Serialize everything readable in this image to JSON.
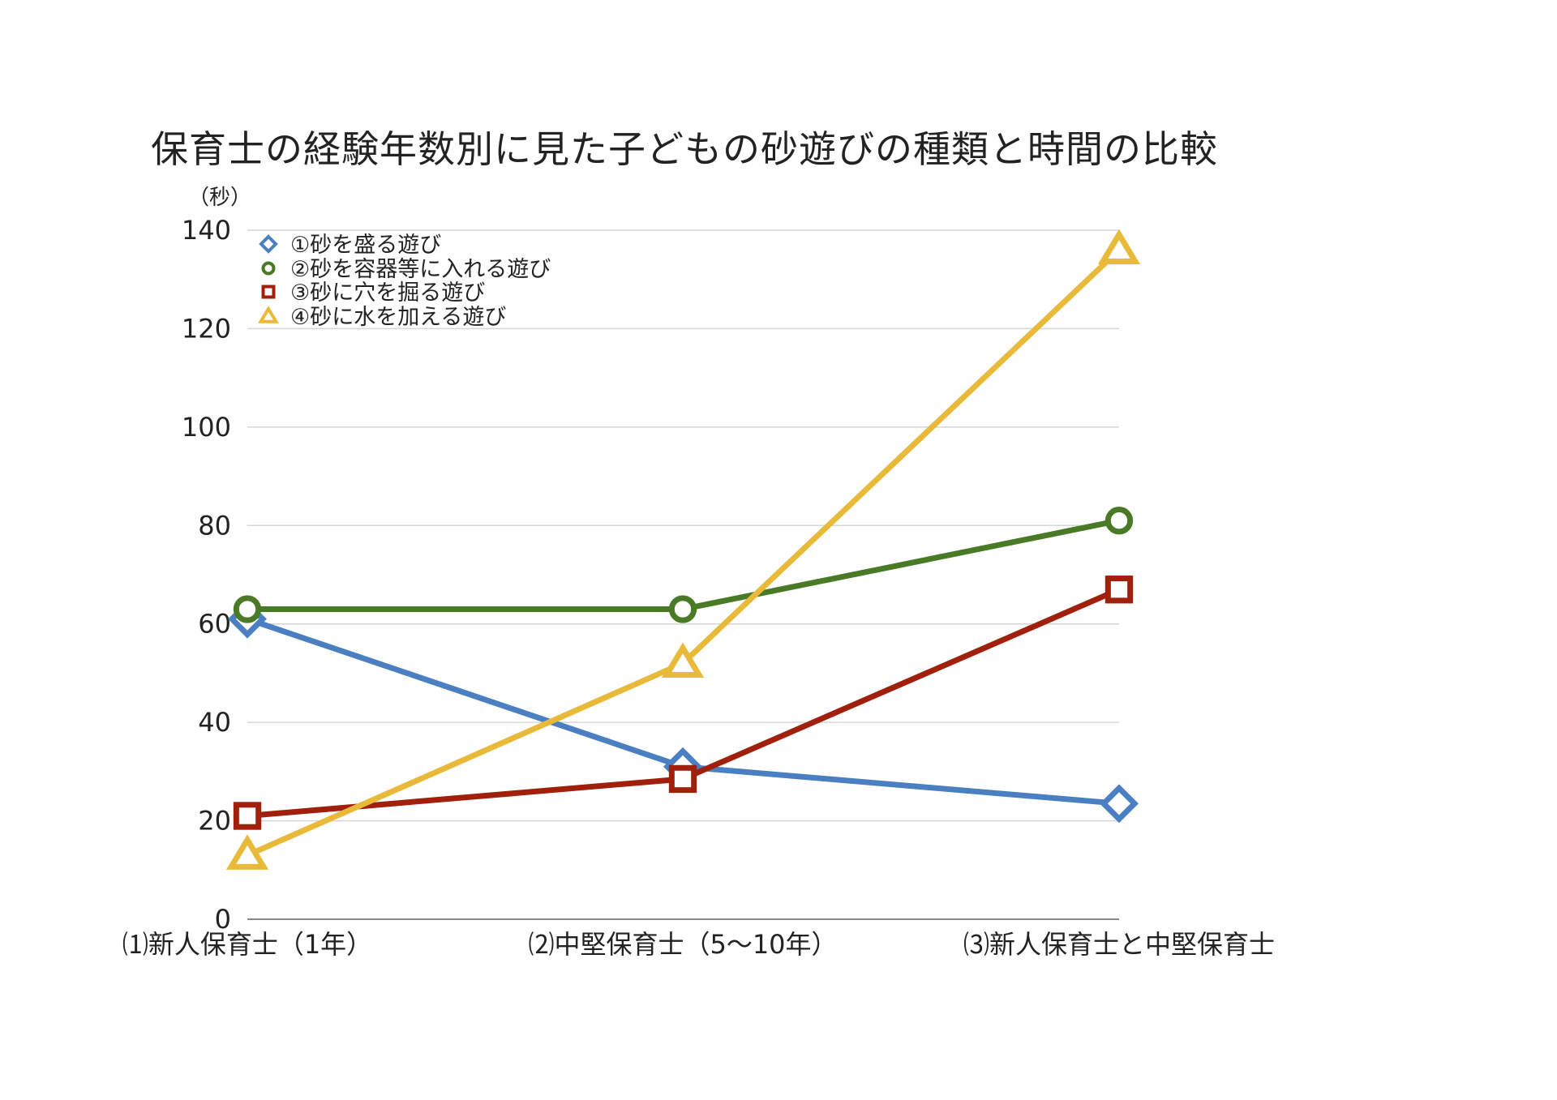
{
  "chart_data": {
    "type": "line",
    "title": "保育士の経験年数別に見た子どもの砂遊びの種類と時間の比較",
    "ylabel": "（秒）",
    "xlabel": "",
    "categories": [
      "⑴新人保育士（1年）",
      "⑵中堅保育士（5〜10年）",
      "⑶新人保育士と中堅保育士"
    ],
    "ylim": [
      0,
      140
    ],
    "yticks": [
      0,
      20,
      40,
      60,
      80,
      100,
      120,
      140
    ],
    "grid": true,
    "legend": "top-left",
    "series": [
      {
        "name": "①砂を盛る遊び",
        "values": [
          61,
          31,
          23.5
        ],
        "color": "#4a7fc1",
        "marker": "diamond"
      },
      {
        "name": "②砂を容器等に入れる遊び",
        "values": [
          63,
          63,
          81
        ],
        "color": "#4a7a25",
        "marker": "circle"
      },
      {
        "name": "③砂に穴を掘る遊び",
        "values": [
          21,
          28.5,
          67
        ],
        "color": "#a0200c",
        "marker": "square"
      },
      {
        "name": "④砂に水を加える遊び",
        "values": [
          13,
          52,
          136
        ],
        "color": "#e9b93a",
        "marker": "triangle"
      }
    ]
  }
}
